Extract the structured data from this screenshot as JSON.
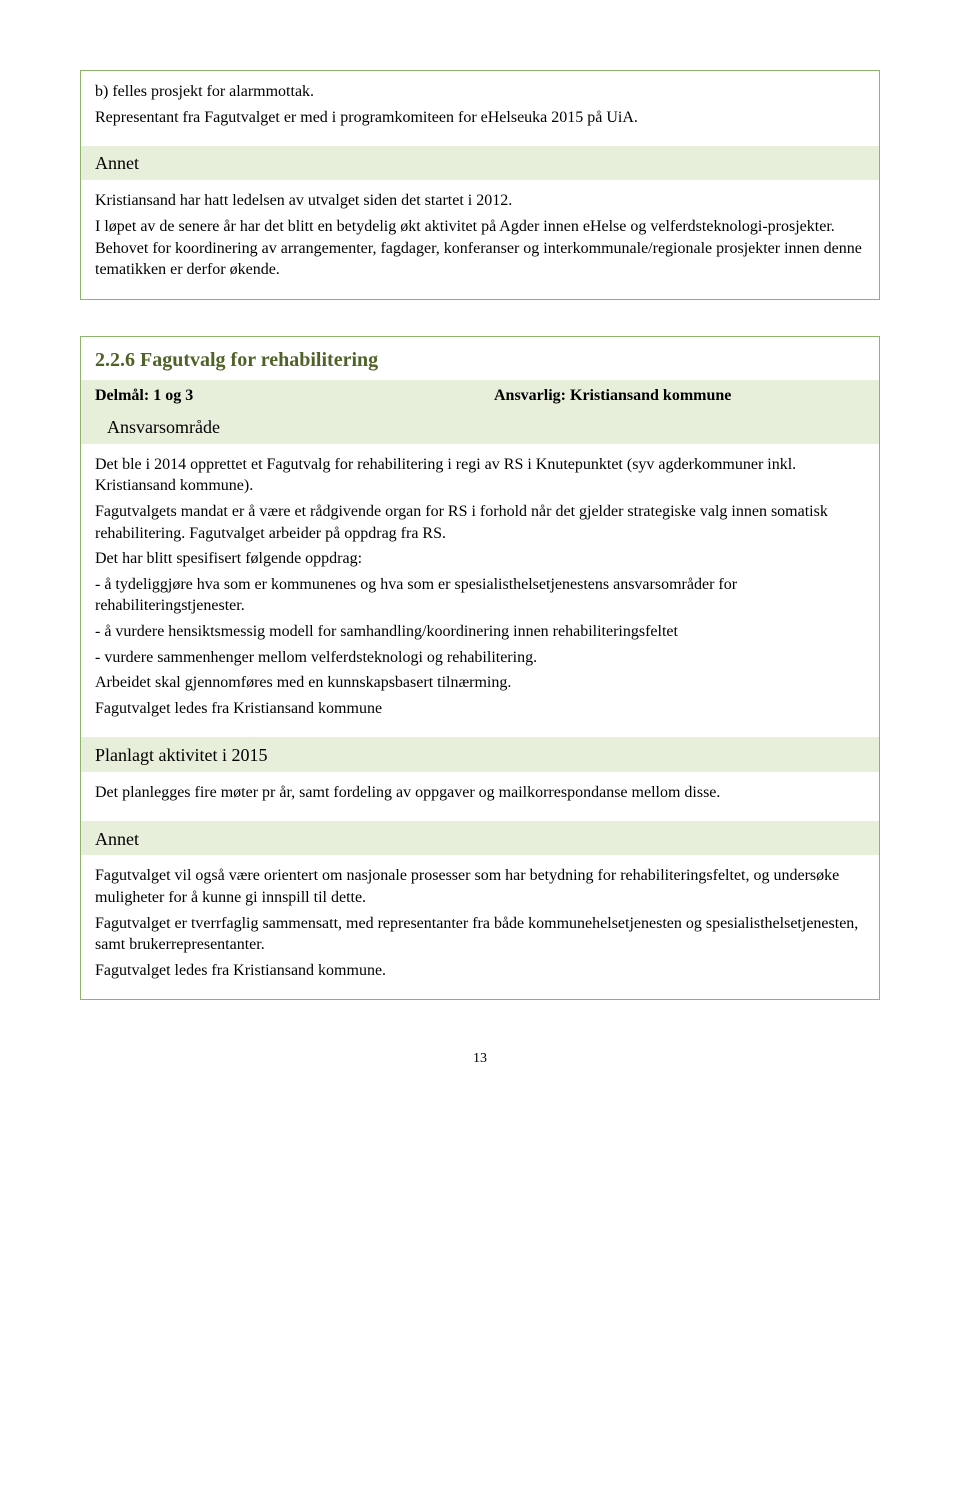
{
  "box1": {
    "intro_lines": [
      "b) felles prosjekt for alarmmottak.",
      "Representant fra Fagutvalget er med i programkomiteen for eHelseuka 2015 på UiA."
    ],
    "annet_label": "Annet",
    "annet_paragraphs": [
      "Kristiansand har hatt ledelsen av utvalget siden det startet i 2012.",
      "I løpet av de senere år har det blitt en betydelig økt aktivitet på Agder innen eHelse og velferdsteknologi-prosjekter. Behovet for koordinering av arrangementer, fagdager, konferanser og interkommunale/regionale prosjekter innen denne tematikken er derfor økende."
    ]
  },
  "box2": {
    "heading": "2.2.6  Fagutvalg for rehabilitering",
    "delmal_label": "Delmål: 1 og 3",
    "ansvarlig_label": "Ansvarlig: Kristiansand kommune",
    "ansvarsomrade_label": "Ansvarsområde",
    "ansvarsomrade_paragraphs": [
      "Det ble i 2014 opprettet et Fagutvalg for rehabilitering i regi av RS i Knutepunktet (syv agderkommuner inkl. Kristiansand kommune).",
      "Fagutvalgets mandat er å være et rådgivende organ for RS i forhold når det gjelder strategiske valg innen somatisk rehabilitering. Fagutvalget arbeider på oppdrag fra RS.",
      "Det har blitt spesifisert følgende oppdrag:",
      "- å tydeliggjøre hva som er kommunenes og hva som er spesialisthelsetjenestens ansvarsområder for rehabiliteringstjenester.",
      "- å vurdere hensiktsmessig modell for samhandling/koordinering innen rehabiliteringsfeltet",
      "- vurdere sammenhenger mellom velferdsteknologi og rehabilitering.",
      "Arbeidet skal gjennomføres med en kunnskapsbasert tilnærming.",
      "Fagutvalget ledes fra Kristiansand kommune"
    ],
    "planlagt_label": "Planlagt aktivitet i 2015",
    "planlagt_paragraphs": [
      "Det planlegges fire møter pr år, samt fordeling av oppgaver og mailkorrespondanse mellom disse."
    ],
    "annet_label": "Annet",
    "annet_paragraphs": [
      "Fagutvalget vil også være orientert om nasjonale prosesser som har betydning for rehabiliteringsfeltet, og undersøke muligheter for å kunne gi innspill til dette.",
      "Fagutvalget er tverrfaglig sammensatt, med representanter fra både kommunehelsetjenesten og spesialisthelsetjenesten, samt brukerrepresentanter.",
      "Fagutvalget ledes fra Kristiansand kommune."
    ]
  },
  "page_number": "13",
  "colors": {
    "box_border": "#8db36c",
    "row_bg": "#e7efdb",
    "heading_color": "#4f6228",
    "text_color": "#000000",
    "page_bg": "#ffffff"
  },
  "typography": {
    "body_font": "Times New Roman",
    "body_size_pt": 12,
    "heading_size_pt": 15,
    "subheading_size_pt": 13
  }
}
